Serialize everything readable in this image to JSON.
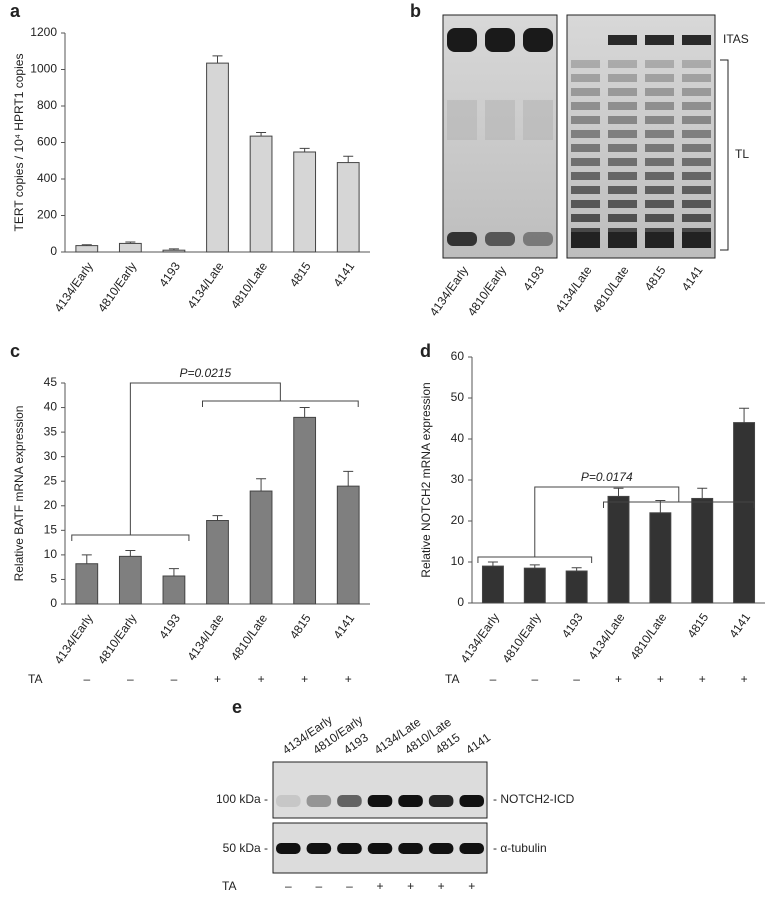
{
  "chart_data": [
    {
      "type": "bar",
      "panel": "a",
      "y_label": "TERT copies / 10⁴ HPRT1 copies",
      "categories": [
        "4134/Early",
        "4810/Early",
        "4193",
        "4134/Late",
        "4810/Late",
        "4815",
        "4141"
      ],
      "values": [
        35,
        47,
        10,
        1035,
        635,
        548,
        490
      ],
      "errors": [
        5,
        8,
        7,
        40,
        20,
        20,
        35
      ],
      "color": "#d6d6d6",
      "ylim": [
        0,
        1200
      ],
      "yticks": [
        0,
        200,
        400,
        600,
        800,
        1000,
        1200
      ]
    },
    {
      "type": "bar",
      "panel": "c",
      "y_label": "Relative BATF mRNA expression",
      "annotation": "P=0.0215",
      "categories": [
        "4134/Early",
        "4810/Early",
        "4193",
        "4134/Late",
        "4810/Late",
        "4815",
        "4141"
      ],
      "values": [
        8.2,
        9.7,
        5.7,
        17,
        23,
        38,
        24
      ],
      "errors": [
        1.8,
        1.2,
        1.5,
        1,
        2.5,
        2,
        3
      ],
      "treatment": {
        "label": "TA",
        "values": [
          "–",
          "–",
          "–",
          "+",
          "+",
          "+",
          "+"
        ]
      },
      "color": "#7f7f7f",
      "ylim": [
        0,
        45
      ],
      "yticks": [
        0,
        5,
        10,
        15,
        20,
        25,
        30,
        35,
        40,
        45
      ]
    },
    {
      "type": "bar",
      "panel": "d",
      "y_label": "Relative NOTCH2 mRNA expression",
      "annotation": "P=0.0174",
      "categories": [
        "4134/Early",
        "4810/Early",
        "4193",
        "4134/Late",
        "4810/Late",
        "4815",
        "4141"
      ],
      "values": [
        9,
        8.5,
        7.8,
        26,
        22,
        25.5,
        44
      ],
      "errors": [
        1,
        0.8,
        0.8,
        2,
        3,
        2.5,
        3.5
      ],
      "treatment": {
        "label": "TA",
        "values": [
          "–",
          "–",
          "–",
          "+",
          "+",
          "+",
          "+"
        ]
      },
      "color": "#333333",
      "ylim": [
        0,
        60
      ],
      "yticks": [
        0,
        10,
        20,
        30,
        40,
        50,
        60
      ]
    }
  ],
  "gels": [
    {
      "panel": "b",
      "lanes": [
        "4134/Early",
        "4810/Early",
        "4193",
        "4134/Late",
        "4810/Late",
        "4815",
        "4141"
      ],
      "labels": [
        "ITAS",
        "TL"
      ]
    },
    {
      "panel": "e",
      "lanes": [
        "4134/Early",
        "4810/Early",
        "4193",
        "4134/Late",
        "4810/Late",
        "4815",
        "4141"
      ],
      "markers": [
        "100 kDa -",
        "50 kDa -"
      ],
      "labels": [
        "- NOTCH2-ICD",
        "- α-tubulin"
      ],
      "treatment": {
        "label": "TA",
        "values": [
          "–",
          "–",
          "–",
          "+",
          "+",
          "+",
          "+"
        ]
      }
    }
  ]
}
